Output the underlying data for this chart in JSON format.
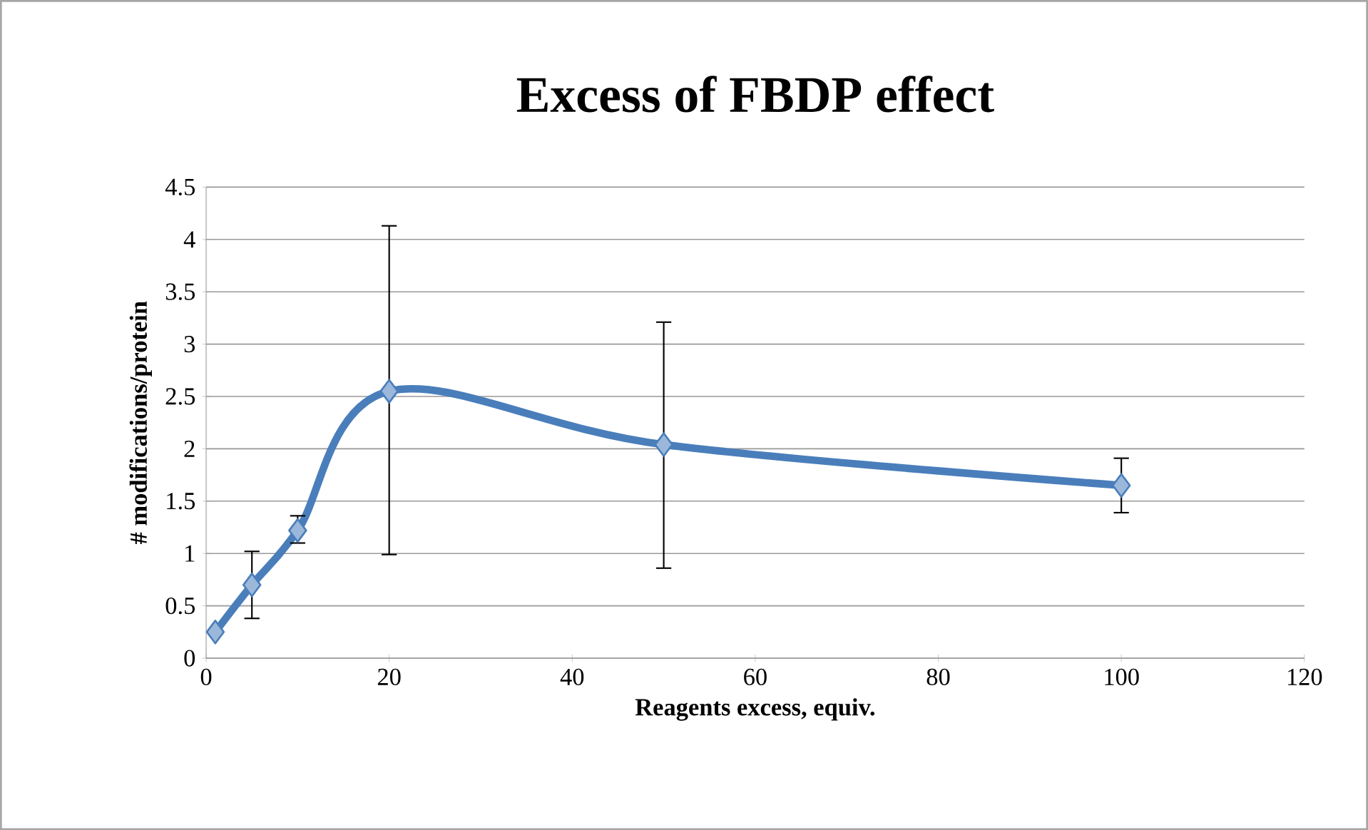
{
  "chart_data": {
    "type": "line",
    "title": "Excess of FBDP effect",
    "xlabel": "Reagents excess, equiv.",
    "ylabel": "# modifications/protein",
    "x": [
      1,
      5,
      10,
      20,
      50,
      100
    ],
    "series": [
      {
        "color": "#4a7ebb",
        "values": [
          0.25,
          0.7,
          1.22,
          2.55,
          2.04,
          1.65
        ],
        "errors": [
          null,
          [
            0.38,
            1.02
          ],
          [
            1.1,
            1.36
          ],
          [
            0.99,
            4.13
          ],
          [
            0.86,
            3.21
          ],
          [
            1.39,
            1.91
          ]
        ]
      }
    ],
    "xlim": [
      0,
      120
    ],
    "xticks": [
      0,
      20,
      40,
      60,
      80,
      100,
      120
    ],
    "ylim": [
      0,
      4.5
    ],
    "yticks": [
      0,
      0.5,
      1,
      1.5,
      2,
      2.5,
      3,
      3.5,
      4,
      4.5
    ],
    "grid": "y",
    "marker": "diamond",
    "line_style": "solid"
  }
}
